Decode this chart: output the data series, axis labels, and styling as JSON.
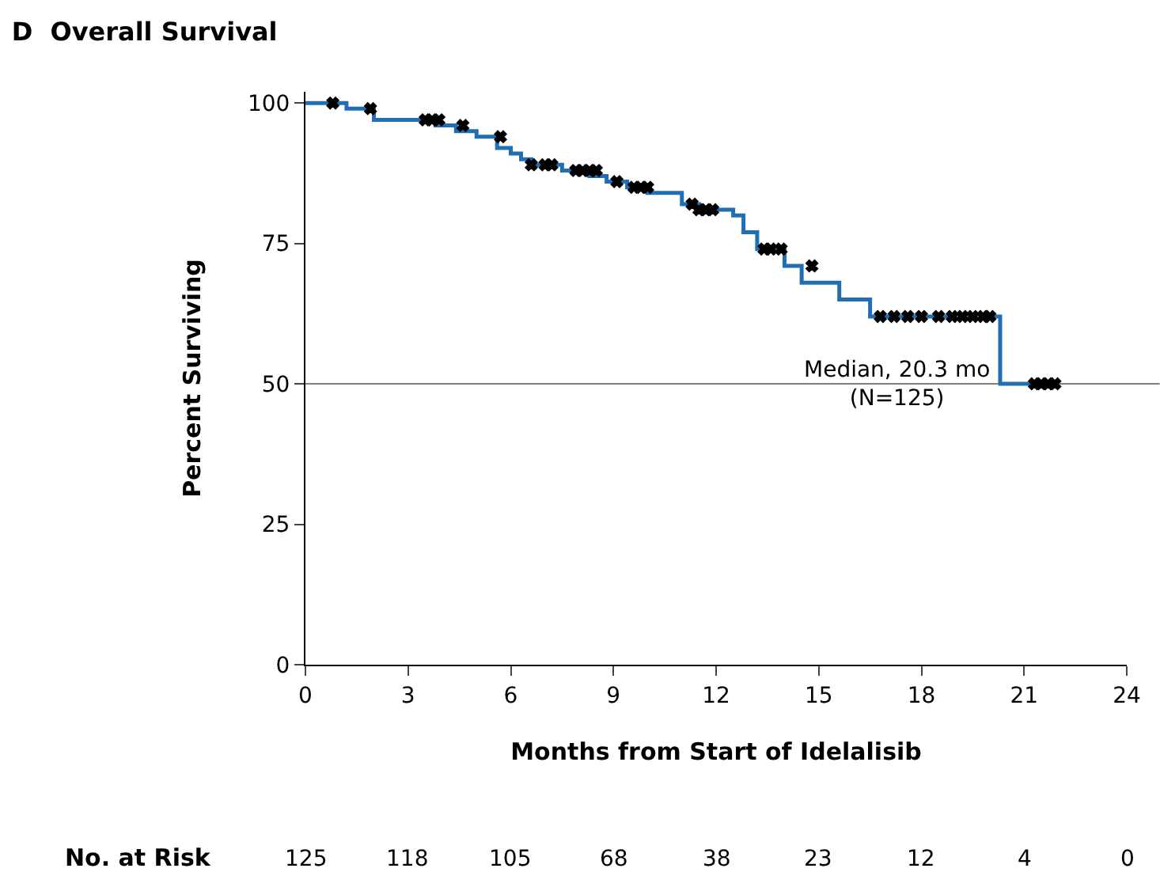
{
  "chart_data": {
    "type": "step",
    "title": "D  Overall Survival",
    "xlabel": "Months from Start of Idelalisib",
    "ylabel": "Percent Surviving",
    "xlim": [
      0,
      24
    ],
    "xticks": [
      0,
      3,
      6,
      9,
      12,
      15,
      18,
      21,
      24
    ],
    "ylim": [
      0,
      102
    ],
    "yticks": [
      0,
      25,
      50,
      75,
      100
    ],
    "grid": false,
    "legend": false,
    "series": [
      {
        "color": "#1f6fb2",
        "x": [
          0,
          1.2,
          2.0,
          3.8,
          4.4,
          5.0,
          5.6,
          6.0,
          6.3,
          6.6,
          7.5,
          8.3,
          8.8,
          9.4,
          10.0,
          11.0,
          11.5,
          12.5,
          12.8,
          13.2,
          14.0,
          14.5,
          15.6,
          16.5,
          20.3,
          22.0
        ],
        "values": [
          100,
          99,
          97,
          96,
          95,
          94,
          92,
          91,
          90,
          89,
          88,
          87,
          86,
          85,
          84,
          82,
          81,
          80,
          77,
          74,
          71,
          68,
          65,
          62,
          50,
          50
        ]
      },
      {
        "type": "scatter",
        "marker": "cross",
        "color": "#000000",
        "x": [
          0.8,
          1.9,
          3.5,
          3.7,
          3.9,
          4.6,
          5.7,
          6.6,
          7.0,
          7.2,
          7.9,
          8.1,
          8.3,
          8.5,
          9.1,
          9.6,
          9.8,
          10.0,
          11.3,
          11.5,
          11.7,
          11.9,
          13.4,
          13.6,
          13.9,
          14.8,
          16.8,
          17.2,
          17.6,
          18.0,
          18.5,
          18.9,
          19.2,
          19.5,
          19.8,
          20.0,
          21.3,
          21.5,
          21.7,
          21.9
        ],
        "values": [
          100,
          99,
          97,
          97,
          97,
          96,
          94,
          89,
          89,
          89,
          88,
          88,
          88,
          88,
          86,
          85,
          85,
          85,
          82,
          81,
          81,
          81,
          74,
          74,
          74,
          71,
          62,
          62,
          62,
          62,
          62,
          62,
          62,
          62,
          62,
          62,
          50,
          50,
          50,
          50
        ]
      }
    ],
    "ref_lines": [
      {
        "axis": "y",
        "value": 50,
        "color": "#808080"
      }
    ],
    "annotations": [
      "No. at Risk",
      "125",
      "118",
      "105",
      "68",
      "38",
      "23",
      "12",
      "4",
      "0",
      {
        "text": "Median, 20.3 mo\n(N=125)",
        "x": 20.3,
        "y": 50
      }
    ]
  }
}
